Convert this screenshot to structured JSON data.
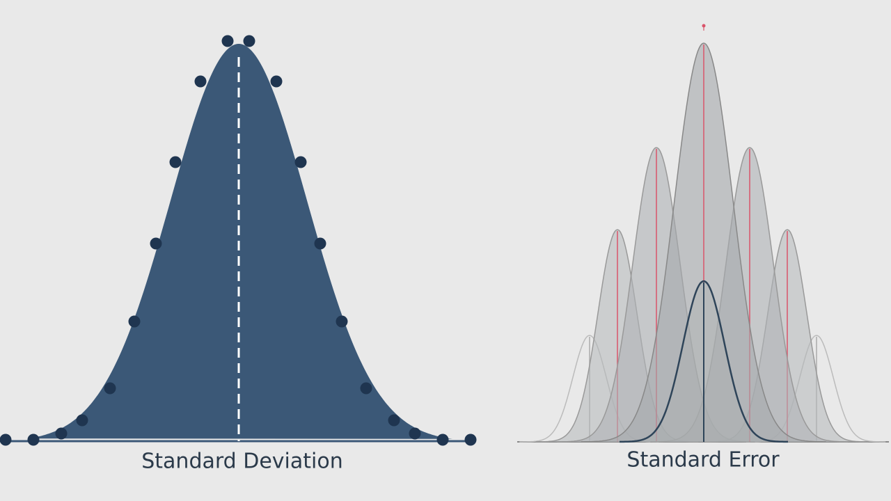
{
  "panels": [
    {
      "label": "Standard Deviation"
    },
    {
      "label": "Standard Error"
    }
  ]
}
